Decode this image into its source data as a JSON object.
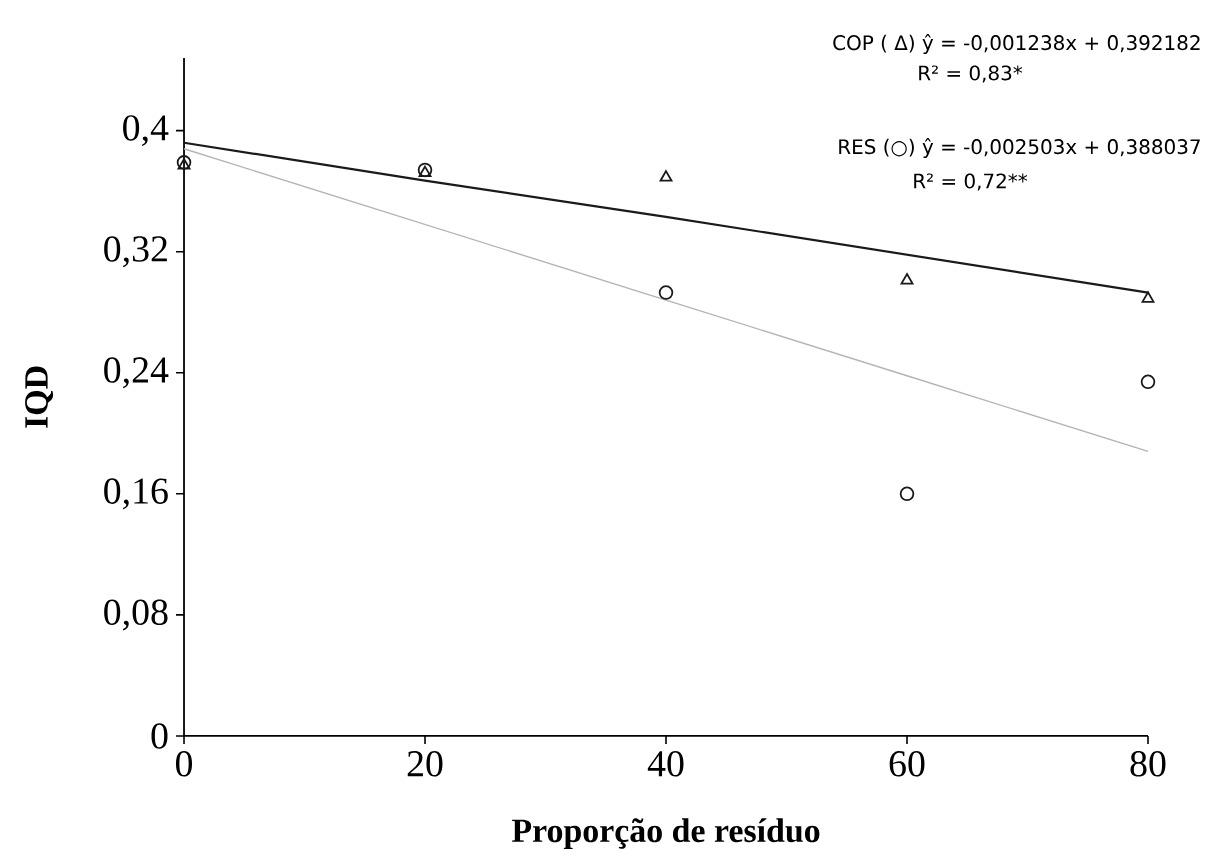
{
  "chart_data": {
    "type": "scatter",
    "xlabel": "Proporção de resíduo",
    "ylabel": "IQD",
    "x": [
      0,
      20,
      40,
      60,
      80
    ],
    "series": [
      {
        "marker": "triangle",
        "color": "#1a1a1a",
        "values": [
          0.377,
          0.372,
          0.369,
          0.301,
          0.289
        ]
      },
      {
        "marker": "circle",
        "color": "#1a1a1a",
        "values": [
          0.379,
          0.374,
          0.293,
          0.16,
          0.234
        ]
      },
      {
        "type": "line",
        "marker": "none",
        "color": "#1a1a1a",
        "values": [
          0.392,
          0.367,
          0.343,
          0.318,
          0.293
        ]
      },
      {
        "type": "line",
        "marker": "none",
        "color": "#b4b4b4",
        "values": [
          0.388,
          0.338,
          0.288,
          0.238,
          0.188
        ]
      }
    ],
    "xlim": [
      0,
      80
    ],
    "ylim": [
      0,
      0.448
    ],
    "xticks": [
      0,
      20,
      40,
      60,
      80
    ],
    "yticks": [
      {
        "value": 0,
        "label": "0"
      },
      {
        "value": 0.08,
        "label": "0,08"
      },
      {
        "value": 0.16,
        "label": "0,16"
      },
      {
        "value": 0.24,
        "label": "0,24"
      },
      {
        "value": 0.32,
        "label": "0,32"
      },
      {
        "value": 0.4,
        "label": "0,4"
      }
    ],
    "grid": false,
    "annotations": [
      "COP ( Δ) ŷ = -0,001238x + 0,392182",
      "R² = 0,83*",
      "RES (○) ŷ = -0,002503x + 0,388037",
      "R² =  0,72**"
    ]
  }
}
